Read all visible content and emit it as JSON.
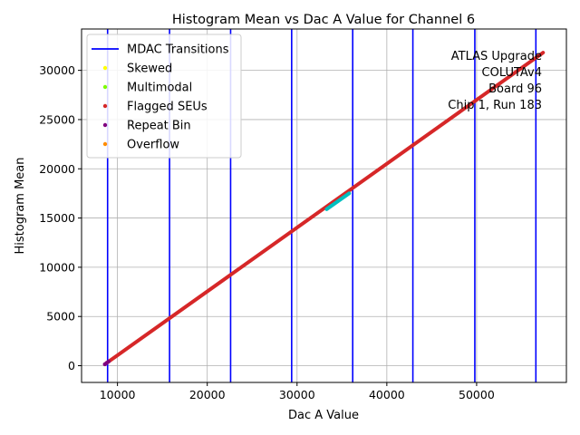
{
  "chart_data": {
    "type": "scatter",
    "title": "Histogram Mean vs Dac A Value for Channel 6",
    "xlabel": "Dac A Value",
    "ylabel": "Histogram Mean",
    "xlim": [
      6000,
      60000
    ],
    "ylim": [
      -1700,
      34200
    ],
    "xticks": [
      10000,
      20000,
      30000,
      40000,
      50000
    ],
    "yticks": [
      0,
      5000,
      10000,
      15000,
      20000,
      25000,
      30000
    ],
    "grid": true,
    "legend_position": "top-left",
    "legend": [
      {
        "label": "MDAC Transitions",
        "kind": "line",
        "color": "#0000ff"
      },
      {
        "label": "Skewed",
        "kind": "marker",
        "color": "#ffff00"
      },
      {
        "label": "Multimodal",
        "kind": "marker",
        "color": "#7cfc00"
      },
      {
        "label": "Flagged SEUs",
        "kind": "marker",
        "color": "#d62728"
      },
      {
        "label": "Repeat Bin",
        "kind": "marker",
        "color": "#800080"
      },
      {
        "label": "Overflow",
        "kind": "marker",
        "color": "#ff8c00"
      }
    ],
    "mdac_transitions": [
      8900,
      15800,
      22600,
      29400,
      36200,
      42900,
      49800,
      56600
    ],
    "series": [
      {
        "name": "Flagged SEUs",
        "color": "#d62728",
        "x": [
          8600,
          57400
        ],
        "y": [
          150,
          31800
        ]
      },
      {
        "name": "Repeat Bin",
        "color": "#800080",
        "x": [
          8600,
          8800,
          9000
        ],
        "y": [
          150,
          280,
          420
        ]
      }
    ],
    "highlight_segment": {
      "color": "#00bfbf",
      "x": [
        33300,
        35800
      ],
      "y": [
        15900,
        17500
      ]
    },
    "annotation": [
      "ATLAS Upgrade",
      "COLUTAv4",
      "Board 96",
      "Chip 1, Run 183"
    ]
  }
}
